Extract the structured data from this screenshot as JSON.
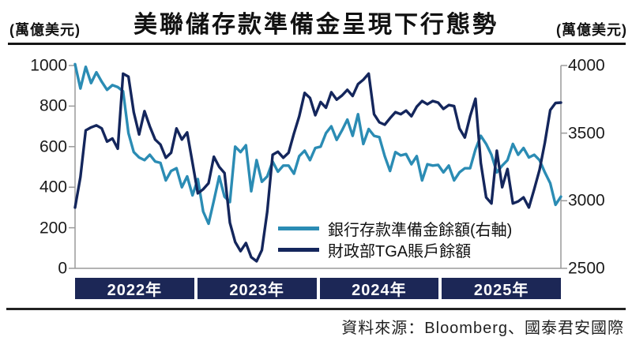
{
  "header": {
    "title": "美聯儲存款準備金呈現下行態勢",
    "left_unit": "(萬億美元)",
    "right_unit": "(萬億美元)"
  },
  "legend": {
    "position": "inside-bottom-right",
    "items": [
      {
        "label": "銀行存款準備金餘額(右軸)",
        "color": "#2b8cb4"
      },
      {
        "label": "財政部TGA賬戶餘額",
        "color": "#14265c"
      }
    ]
  },
  "footer": {
    "source": "資料來源：Bloomberg、國泰君安國際"
  },
  "colors": {
    "reserves_line": "#2b8cb4",
    "tga_line": "#14265c",
    "year_band": "#1c2756",
    "axis": "#9a9a9a",
    "rule": "#1a1a1a"
  },
  "chart_data": {
    "type": "line",
    "title": "美聯儲存款準備金呈現下行態勢",
    "x_bands": [
      "2022年",
      "2023年",
      "2024年",
      "2025年"
    ],
    "x_start": "2022年初",
    "x_end": "2025年9月",
    "points_per_band": 23,
    "grid": false,
    "left_axis": {
      "unit": "(萬億美元)",
      "range": [
        0,
        1000
      ],
      "ticks": [
        1000,
        800,
        600,
        400,
        200,
        0
      ],
      "series": "財政部TGA賬戶餘額"
    },
    "right_axis": {
      "unit": "(萬億美元)",
      "range": [
        2500,
        4000
      ],
      "ticks": [
        4000,
        3500,
        3000,
        2500
      ],
      "series": "銀行存款準備金餘額"
    },
    "series": [
      {
        "name": "銀行存款準備金餘額(右軸)",
        "axis": "right",
        "color": "#2b8cb4",
        "values": [
          4010,
          3830,
          3990,
          3870,
          3950,
          3880,
          3820,
          3855,
          3840,
          3810,
          3500,
          3360,
          3320,
          3300,
          3340,
          3290,
          3280,
          3150,
          3220,
          3240,
          3100,
          3180,
          3040,
          3160,
          2920,
          2830,
          3000,
          3180,
          3030,
          2990,
          3400,
          3360,
          3410,
          3070,
          3300,
          3140,
          3180,
          3290,
          3215,
          3260,
          3260,
          3200,
          3330,
          3370,
          3300,
          3390,
          3400,
          3500,
          3550,
          3450,
          3520,
          3600,
          3480,
          3640,
          3420,
          3530,
          3480,
          3470,
          3330,
          3220,
          3360,
          3335,
          3345,
          3270,
          3330,
          3150,
          3270,
          3260,
          3265,
          3210,
          3260,
          3150,
          3210,
          3240,
          3240,
          3380,
          3480,
          3420,
          3340,
          3210,
          3260,
          3300,
          3420,
          3340,
          3390,
          3320,
          3340,
          3300,
          3210,
          3130,
          2970,
          3030
        ]
      },
      {
        "name": "財政部TGA賬戶餘額",
        "axis": "left",
        "color": "#14265c",
        "values": [
          300,
          450,
          680,
          695,
          705,
          690,
          625,
          640,
          590,
          960,
          945,
          770,
          660,
          775,
          700,
          635,
          610,
          545,
          570,
          690,
          635,
          670,
          520,
          370,
          390,
          420,
          550,
          500,
          470,
          225,
          130,
          85,
          125,
          55,
          35,
          90,
          280,
          560,
          575,
          545,
          570,
          665,
          750,
          865,
          840,
          755,
          820,
          792,
          868,
          832,
          852,
          880,
          850,
          908,
          930,
          960,
          760,
          720,
          708,
          740,
          770,
          760,
          778,
          750,
          797,
          825,
          809,
          825,
          817,
          786,
          805,
          800,
          690,
          645,
          750,
          836,
          520,
          350,
          320,
          580,
          400,
          490,
          320,
          330,
          350,
          300,
          390,
          486,
          620,
          780,
          815,
          817
        ]
      }
    ]
  }
}
